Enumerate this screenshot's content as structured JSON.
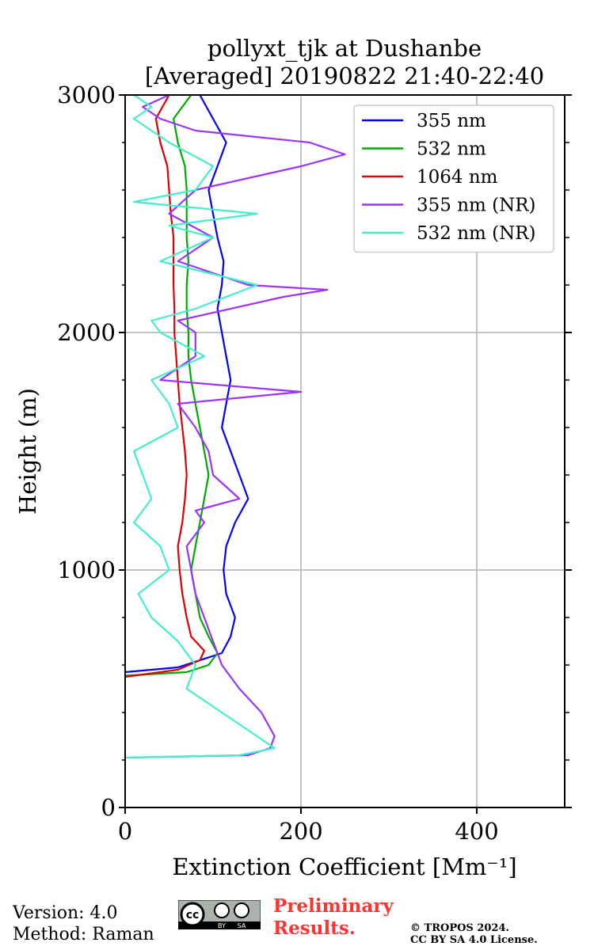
{
  "chart_data": {
    "type": "line",
    "title": [
      "pollyxt_tjk at Dushanbe",
      "[Averaged] 20190822 21:40-22:40"
    ],
    "xlabel": "Extinction Coefficient [Mm⁻¹]",
    "ylabel": "Height (m)",
    "xlim": [
      0,
      500
    ],
    "ylim": [
      0,
      3000
    ],
    "x_ticks": [
      0,
      200,
      400
    ],
    "y_ticks": [
      0,
      1000,
      2000,
      3000
    ],
    "grid": true,
    "legend_position": "top-right",
    "series": [
      {
        "name": "355 nm",
        "color": "#0000ff",
        "points": [
          [
            0,
            570
          ],
          [
            60,
            590
          ],
          [
            110,
            650
          ],
          [
            120,
            720
          ],
          [
            125,
            800
          ],
          [
            115,
            900
          ],
          [
            112,
            1000
          ],
          [
            115,
            1100
          ],
          [
            125,
            1200
          ],
          [
            140,
            1300
          ],
          [
            130,
            1400
          ],
          [
            120,
            1500
          ],
          [
            110,
            1600
          ],
          [
            115,
            1700
          ],
          [
            120,
            1800
          ],
          [
            115,
            1900
          ],
          [
            110,
            2000
          ],
          [
            105,
            2100
          ],
          [
            110,
            2200
          ],
          [
            112,
            2300
          ],
          [
            105,
            2400
          ],
          [
            100,
            2500
          ],
          [
            95,
            2600
          ],
          [
            105,
            2700
          ],
          [
            115,
            2800
          ],
          [
            100,
            2900
          ],
          [
            85,
            3000
          ]
        ]
      },
      {
        "name": "532 nm",
        "color": "#00aa00",
        "points": [
          [
            0,
            555
          ],
          [
            70,
            570
          ],
          [
            95,
            600
          ],
          [
            105,
            650
          ],
          [
            95,
            720
          ],
          [
            85,
            800
          ],
          [
            80,
            900
          ],
          [
            75,
            1000
          ],
          [
            80,
            1100
          ],
          [
            85,
            1200
          ],
          [
            90,
            1300
          ],
          [
            95,
            1400
          ],
          [
            90,
            1500
          ],
          [
            85,
            1600
          ],
          [
            80,
            1700
          ],
          [
            75,
            1800
          ],
          [
            72,
            1900
          ],
          [
            72,
            2000
          ],
          [
            70,
            2100
          ],
          [
            70,
            2200
          ],
          [
            72,
            2300
          ],
          [
            70,
            2400
          ],
          [
            70,
            2500
          ],
          [
            70,
            2600
          ],
          [
            68,
            2700
          ],
          [
            60,
            2800
          ],
          [
            55,
            2900
          ],
          [
            75,
            3000
          ]
        ]
      },
      {
        "name": "1064 nm",
        "color": "#dd0000",
        "points": [
          [
            0,
            550
          ],
          [
            60,
            580
          ],
          [
            85,
            620
          ],
          [
            90,
            660
          ],
          [
            75,
            720
          ],
          [
            70,
            800
          ],
          [
            65,
            900
          ],
          [
            62,
            1000
          ],
          [
            60,
            1100
          ],
          [
            65,
            1200
          ],
          [
            68,
            1300
          ],
          [
            70,
            1400
          ],
          [
            68,
            1500
          ],
          [
            65,
            1600
          ],
          [
            62,
            1700
          ],
          [
            60,
            1800
          ],
          [
            58,
            1900
          ],
          [
            56,
            2000
          ],
          [
            56,
            2100
          ],
          [
            55,
            2200
          ],
          [
            55,
            2300
          ],
          [
            55,
            2400
          ],
          [
            52,
            2500
          ],
          [
            50,
            2600
          ],
          [
            48,
            2700
          ],
          [
            40,
            2800
          ],
          [
            35,
            2900
          ],
          [
            50,
            3000
          ]
        ]
      },
      {
        "name": "355 nm (NR)",
        "color": "#9933ff",
        "points": [
          [
            0,
            210
          ],
          [
            140,
            220
          ],
          [
            165,
            250
          ],
          [
            170,
            300
          ],
          [
            155,
            400
          ],
          [
            130,
            500
          ],
          [
            110,
            600
          ],
          [
            100,
            700
          ],
          [
            90,
            800
          ],
          [
            80,
            900
          ],
          [
            75,
            1000
          ],
          [
            70,
            1100
          ],
          [
            90,
            1200
          ],
          [
            80,
            1250
          ],
          [
            130,
            1300
          ],
          [
            100,
            1400
          ],
          [
            95,
            1500
          ],
          [
            80,
            1600
          ],
          [
            60,
            1700
          ],
          [
            200,
            1750
          ],
          [
            40,
            1800
          ],
          [
            80,
            1900
          ],
          [
            80,
            2000
          ],
          [
            60,
            2050
          ],
          [
            180,
            2150
          ],
          [
            230,
            2180
          ],
          [
            140,
            2200
          ],
          [
            100,
            2250
          ],
          [
            60,
            2300
          ],
          [
            100,
            2400
          ],
          [
            50,
            2500
          ],
          [
            80,
            2600
          ],
          [
            200,
            2700
          ],
          [
            250,
            2750
          ],
          [
            210,
            2800
          ],
          [
            80,
            2850
          ],
          [
            40,
            2900
          ],
          [
            20,
            2950
          ],
          [
            50,
            3000
          ]
        ]
      },
      {
        "name": "532 nm (NR)",
        "color": "#44eecc",
        "points": [
          [
            0,
            210
          ],
          [
            130,
            220
          ],
          [
            170,
            250
          ],
          [
            150,
            300
          ],
          [
            110,
            400
          ],
          [
            70,
            500
          ],
          [
            80,
            600
          ],
          [
            60,
            700
          ],
          [
            30,
            800
          ],
          [
            15,
            900
          ],
          [
            50,
            1000
          ],
          [
            40,
            1100
          ],
          [
            10,
            1200
          ],
          [
            30,
            1300
          ],
          [
            20,
            1400
          ],
          [
            10,
            1500
          ],
          [
            60,
            1600
          ],
          [
            50,
            1700
          ],
          [
            30,
            1800
          ],
          [
            90,
            1900
          ],
          [
            40,
            2000
          ],
          [
            30,
            2050
          ],
          [
            80,
            2100
          ],
          [
            150,
            2200
          ],
          [
            40,
            2300
          ],
          [
            100,
            2400
          ],
          [
            50,
            2450
          ],
          [
            150,
            2500
          ],
          [
            10,
            2550
          ],
          [
            80,
            2600
          ],
          [
            100,
            2700
          ],
          [
            50,
            2800
          ],
          [
            10,
            2900
          ],
          [
            30,
            2950
          ],
          [
            10,
            3000
          ]
        ]
      }
    ]
  },
  "footer": {
    "version": "Version: 4.0",
    "method": "Method: Raman",
    "prelim_line1": "Preliminary",
    "prelim_line2": "Results.",
    "copyright_line1": "© TROPOS 2024.",
    "copyright_line2": "CC BY SA 4.0 License."
  },
  "license_badge": {
    "cc": "cc",
    "by": "BY",
    "sa": "SA"
  }
}
